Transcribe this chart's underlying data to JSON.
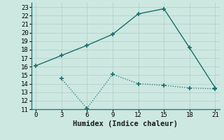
{
  "xlabel": "Humidex (Indice chaleur)",
  "bg_color": "#cce8e0",
  "grid_color": "#b0d8d0",
  "line_color": "#1a6e6e",
  "line1_x": [
    0,
    3,
    6,
    9,
    12,
    15,
    18,
    21
  ],
  "line1_y": [
    16.1,
    17.3,
    18.5,
    19.8,
    22.2,
    22.8,
    18.2,
    13.5
  ],
  "line2_x": [
    3,
    6,
    9,
    12,
    15,
    18,
    21
  ],
  "line2_y": [
    14.6,
    11.1,
    15.1,
    14.0,
    13.8,
    13.5,
    13.4
  ],
  "ylim": [
    11,
    23.5
  ],
  "xlim": [
    -0.5,
    21.5
  ],
  "yticks": [
    11,
    12,
    13,
    14,
    15,
    16,
    17,
    18,
    19,
    20,
    21,
    22,
    23
  ],
  "xticks": [
    0,
    3,
    6,
    9,
    12,
    15,
    18,
    21
  ],
  "tick_fontsize": 6.5,
  "xlabel_fontsize": 7.5
}
